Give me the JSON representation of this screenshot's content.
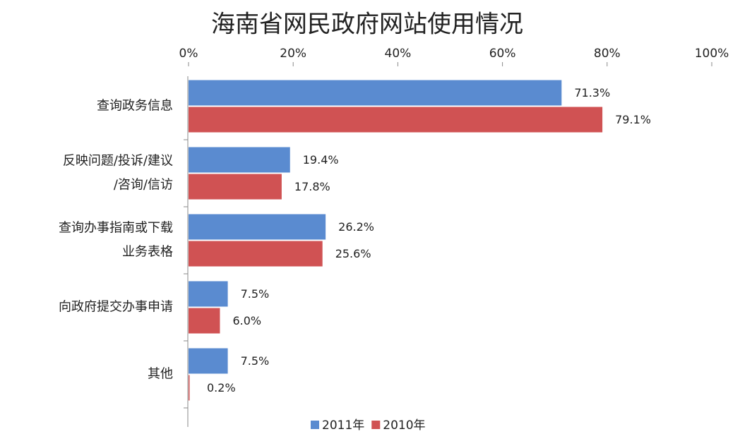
{
  "chart_data": {
    "type": "bar",
    "orientation": "horizontal",
    "title": "海南省网民政府网站使用情况",
    "categories": [
      [
        "查询政务信息"
      ],
      [
        "反映问题/投诉/建议",
        "/咨询/信访"
      ],
      [
        "查询办事指南或下载",
        "业务表格"
      ],
      [
        "向政府提交办事申请"
      ],
      [
        "其他"
      ]
    ],
    "series": [
      {
        "name": "2011年",
        "color": "#5a8bd0",
        "values": [
          71.3,
          19.4,
          26.2,
          7.5,
          7.5
        ],
        "value_labels": [
          "71.3%",
          "19.4%",
          "26.2%",
          "7.5%",
          "7.5%"
        ]
      },
      {
        "name": "2010年",
        "color": "#d05253",
        "values": [
          79.1,
          17.8,
          25.6,
          6.0,
          0.2
        ],
        "value_labels": [
          "79.1%",
          "17.8%",
          "25.6%",
          "6.0%",
          "0.2%"
        ]
      }
    ],
    "xlim": [
      0,
      100
    ],
    "xticks": [
      {
        "value": 0,
        "label": "0%"
      },
      {
        "value": 20,
        "label": "20%"
      },
      {
        "value": 40,
        "label": "40%"
      },
      {
        "value": 60,
        "label": "60%"
      },
      {
        "value": 80,
        "label": "80%"
      },
      {
        "value": 100,
        "label": "100%"
      }
    ],
    "legend": "bottom"
  }
}
